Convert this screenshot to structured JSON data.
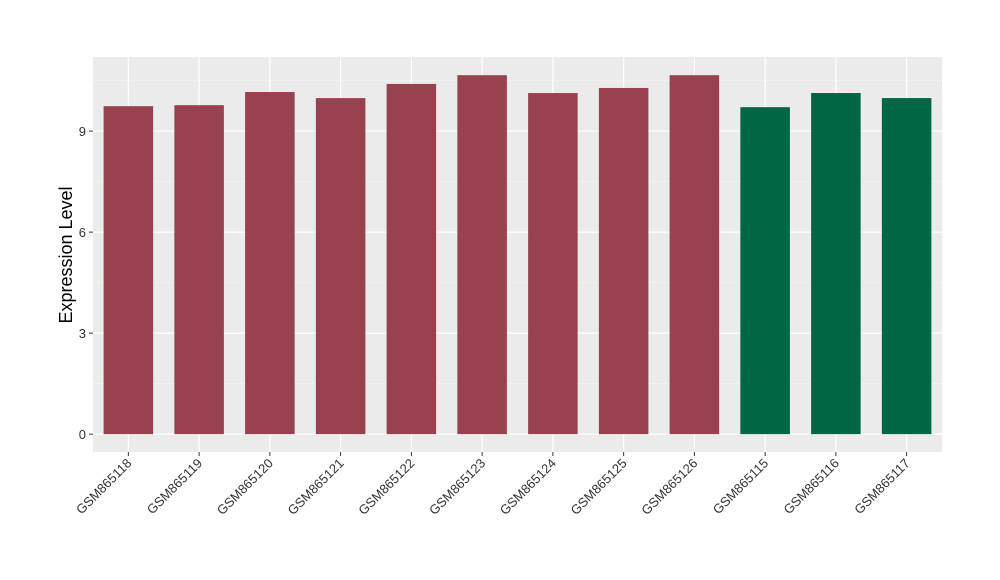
{
  "chart_data": {
    "type": "bar",
    "y_label": "Expression Level",
    "categories": [
      "GSM865118",
      "GSM865119",
      "GSM865120",
      "GSM865121",
      "GSM865122",
      "GSM865123",
      "GSM865124",
      "GSM865125",
      "GSM865126",
      "GSM865115",
      "GSM865116",
      "GSM865117"
    ],
    "values": [
      9.74,
      9.77,
      10.16,
      9.98,
      10.4,
      10.66,
      10.13,
      10.28,
      10.66,
      9.71,
      10.13,
      9.98
    ],
    "colors": [
      "#99424f",
      "#99424f",
      "#99424f",
      "#99424f",
      "#99424f",
      "#99424f",
      "#99424f",
      "#99424f",
      "#99424f",
      "#006643",
      "#006643",
      "#006643"
    ],
    "ylim": [
      -0.53,
      11.2
    ],
    "yticks": [
      0,
      3,
      6,
      9
    ],
    "minor_yticks": [
      1.5,
      4.5,
      7.5,
      10.5
    ],
    "grid": true
  }
}
